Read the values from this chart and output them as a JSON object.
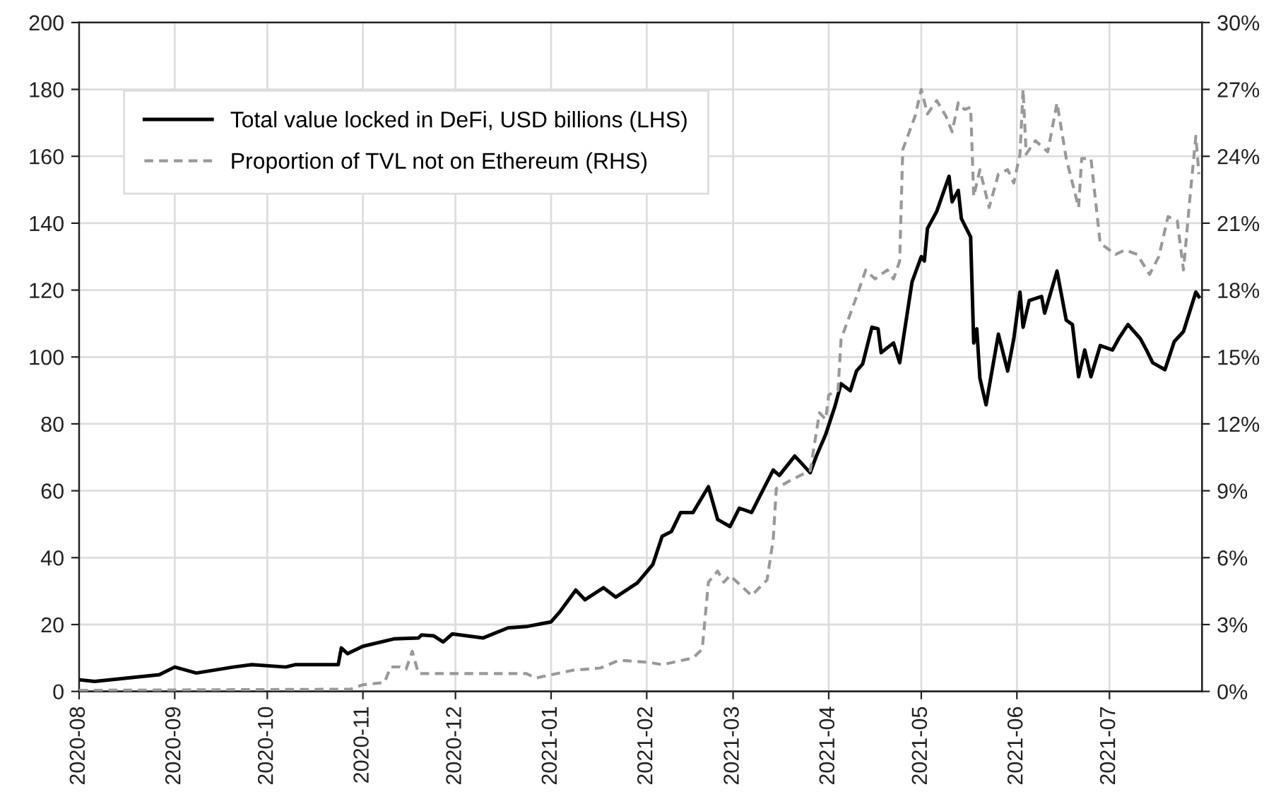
{
  "chart_data": {
    "type": "line",
    "xlim": [
      "2020-08-01",
      "2021-07-31"
    ],
    "xticks": [
      {
        "value": "2020-08-01",
        "label": "2020-08"
      },
      {
        "value": "2020-09-01",
        "label": "2020-09"
      },
      {
        "value": "2020-10-01",
        "label": "2020-10"
      },
      {
        "value": "2020-11-01",
        "label": "2020-11"
      },
      {
        "value": "2020-12-01",
        "label": "2020-12"
      },
      {
        "value": "2021-01-01",
        "label": "2021-01"
      },
      {
        "value": "2021-02-01",
        "label": "2021-02"
      },
      {
        "value": "2021-03-01",
        "label": "2021-03"
      },
      {
        "value": "2021-04-01",
        "label": "2021-04"
      },
      {
        "value": "2021-05-01",
        "label": "2021-05"
      },
      {
        "value": "2021-06-01",
        "label": "2021-06"
      },
      {
        "value": "2021-07-01",
        "label": "2021-07"
      }
    ],
    "ylim": [
      0,
      200
    ],
    "yticks": [
      0,
      20,
      40,
      60,
      80,
      100,
      120,
      140,
      160,
      180,
      200
    ],
    "y2lim": [
      0,
      30
    ],
    "y2ticks": [
      {
        "value": 0,
        "label": "0%"
      },
      {
        "value": 3,
        "label": "3%"
      },
      {
        "value": 6,
        "label": "6%"
      },
      {
        "value": 9,
        "label": "9%"
      },
      {
        "value": 12,
        "label": "12%"
      },
      {
        "value": 15,
        "label": "15%"
      },
      {
        "value": 18,
        "label": "18%"
      },
      {
        "value": 21,
        "label": "21%"
      },
      {
        "value": 24,
        "label": "24%"
      },
      {
        "value": 27,
        "label": "27%"
      },
      {
        "value": 30,
        "label": "30%"
      }
    ],
    "grid": true,
    "legend": "top left",
    "series": [
      {
        "name": "Total value locked in DeFi, USD billions (LHS)",
        "color": "#000000",
        "line_style": "solid",
        "x": [
          "2020-08-01",
          "2020-08-06",
          "2020-08-27",
          "2020-09-01",
          "2020-09-08",
          "2020-09-20",
          "2020-09-26",
          "2020-10-07",
          "2020-10-10",
          "2020-10-24",
          "2020-10-25",
          "2020-10-27",
          "2020-11-01",
          "2020-11-11",
          "2020-11-19",
          "2020-11-20",
          "2020-11-24",
          "2020-11-27",
          "2020-11-30",
          "2020-12-10",
          "2020-12-18",
          "2020-12-24",
          "2021-01-01",
          "2021-01-04",
          "2021-01-09",
          "2021-01-12",
          "2021-01-18",
          "2021-01-22",
          "2021-01-29",
          "2021-02-03",
          "2021-02-06",
          "2021-02-09",
          "2021-02-12",
          "2021-02-16",
          "2021-02-21",
          "2021-02-24",
          "2021-02-28",
          "2021-03-03",
          "2021-03-07",
          "2021-03-10",
          "2021-03-14",
          "2021-03-16",
          "2021-03-21",
          "2021-03-26",
          "2021-03-28",
          "2021-03-31",
          "2021-04-03",
          "2021-04-05",
          "2021-04-08",
          "2021-04-10",
          "2021-04-12",
          "2021-04-15",
          "2021-04-17",
          "2021-04-18",
          "2021-04-22",
          "2021-04-24",
          "2021-04-28",
          "2021-05-01",
          "2021-05-02",
          "2021-05-03",
          "2021-05-06",
          "2021-05-10",
          "2021-05-11",
          "2021-05-13",
          "2021-05-14",
          "2021-05-17",
          "2021-05-18",
          "2021-05-19",
          "2021-05-20",
          "2021-05-22",
          "2021-05-26",
          "2021-05-29",
          "2021-05-31",
          "2021-06-02",
          "2021-06-03",
          "2021-06-05",
          "2021-06-09",
          "2021-06-10",
          "2021-06-14",
          "2021-06-17",
          "2021-06-19",
          "2021-06-21",
          "2021-06-23",
          "2021-06-25",
          "2021-06-28",
          "2021-07-02",
          "2021-07-04",
          "2021-07-07",
          "2021-07-11",
          "2021-07-13",
          "2021-07-15",
          "2021-07-19",
          "2021-07-22",
          "2021-07-25",
          "2021-07-29",
          "2021-07-30"
        ],
        "values": [
          3.5,
          3.0,
          5.0,
          7.3,
          5.5,
          7.3,
          8.0,
          7.3,
          8.0,
          8.0,
          13.0,
          11.3,
          13.5,
          15.7,
          16.0,
          16.9,
          16.6,
          14.8,
          17.2,
          16.0,
          19.0,
          19.4,
          20.8,
          24.0,
          30.3,
          27.4,
          31.0,
          28.2,
          32.5,
          38.0,
          46.4,
          47.8,
          53.5,
          53.5,
          61.2,
          51.4,
          49.3,
          54.8,
          53.5,
          59.0,
          66.2,
          64.6,
          70.4,
          65.4,
          70.4,
          76.8,
          85.2,
          92.0,
          89.9,
          95.8,
          97.9,
          108.9,
          108.4,
          101.3,
          104.2,
          98.3,
          122.4,
          130.0,
          128.7,
          138.4,
          143.5,
          154.0,
          146.4,
          149.8,
          141.4,
          135.9,
          104.2,
          108.4,
          93.7,
          85.7,
          106.8,
          95.8,
          105.5,
          119.4,
          108.9,
          116.9,
          118.1,
          113.1,
          125.7,
          111.0,
          109.7,
          94.1,
          102.1,
          94.1,
          103.4,
          102.1,
          105.5,
          109.7,
          105.5,
          102.1,
          98.3,
          96.2,
          104.6,
          107.6,
          119.4,
          118.0
        ]
      },
      {
        "name": "Proportion of TVL not on Ethereum (RHS)",
        "color": "#999999",
        "line_style": "dashed",
        "axis": "y2",
        "x": [
          "2020-08-01",
          "2020-10-28",
          "2020-11-01",
          "2020-11-08",
          "2020-11-10",
          "2020-11-13",
          "2020-11-15",
          "2020-11-17",
          "2020-11-19",
          "2020-12-24",
          "2020-12-27",
          "2021-01-08",
          "2021-01-17",
          "2021-01-23",
          "2021-02-02",
          "2021-02-06",
          "2021-02-16",
          "2021-02-19",
          "2021-02-21",
          "2021-02-24",
          "2021-02-26",
          "2021-02-28",
          "2021-03-07",
          "2021-03-12",
          "2021-03-14",
          "2021-03-15",
          "2021-03-20",
          "2021-03-26",
          "2021-03-29",
          "2021-03-31",
          "2021-04-01",
          "2021-04-04",
          "2021-04-05",
          "2021-04-10",
          "2021-04-13",
          "2021-04-16",
          "2021-04-20",
          "2021-04-22",
          "2021-04-24",
          "2021-04-25",
          "2021-04-29",
          "2021-05-01",
          "2021-05-03",
          "2021-05-06",
          "2021-05-09",
          "2021-05-11",
          "2021-05-13",
          "2021-05-15",
          "2021-05-17",
          "2021-05-18",
          "2021-05-20",
          "2021-05-23",
          "2021-05-26",
          "2021-05-29",
          "2021-05-31",
          "2021-06-02",
          "2021-06-03",
          "2021-06-04",
          "2021-06-07",
          "2021-06-11",
          "2021-06-14",
          "2021-06-17",
          "2021-06-21",
          "2021-06-22",
          "2021-06-25",
          "2021-06-28",
          "2021-07-03",
          "2021-07-06",
          "2021-07-10",
          "2021-07-14",
          "2021-07-17",
          "2021-07-20",
          "2021-07-23",
          "2021-07-25",
          "2021-07-27",
          "2021-07-29",
          "2021-07-30"
        ],
        "values": [
          0.05,
          0.1,
          0.3,
          0.4,
          1.1,
          1.1,
          1.0,
          1.8,
          0.8,
          0.8,
          0.6,
          0.95,
          1.05,
          1.4,
          1.3,
          1.2,
          1.5,
          1.9,
          4.9,
          5.4,
          4.9,
          5.2,
          4.3,
          5.0,
          6.8,
          9.1,
          9.5,
          9.9,
          12.5,
          12.2,
          13.3,
          13.5,
          15.8,
          17.7,
          18.9,
          18.5,
          18.9,
          18.5,
          19.3,
          24.3,
          25.8,
          27.0,
          25.9,
          26.5,
          25.8,
          25.1,
          26.4,
          26.1,
          26.2,
          22.2,
          23.4,
          21.7,
          23.2,
          23.4,
          22.8,
          24.1,
          27.0,
          24.1,
          24.7,
          24.2,
          26.4,
          23.9,
          21.7,
          23.9,
          23.9,
          20.1,
          19.6,
          19.8,
          19.6,
          18.7,
          19.5,
          21.3,
          21.1,
          18.9,
          22.0,
          24.9,
          23.2
        ]
      }
    ]
  }
}
